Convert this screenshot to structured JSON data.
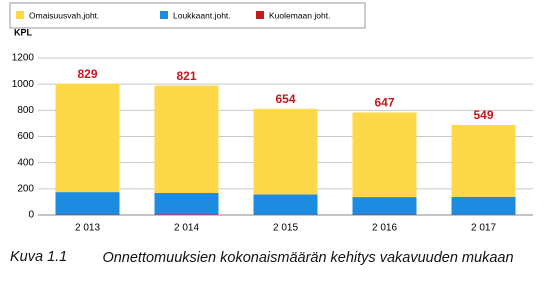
{
  "chart_data": {
    "type": "stacked_bar",
    "y_label": "KPL",
    "categories": [
      "2 013",
      "2 014",
      "2 015",
      "2 016",
      "2 017"
    ],
    "series": [
      {
        "name": "Omaisuusvah.joht.",
        "color": "#fdd94a",
        "values": [
          829,
          821,
          654,
          647,
          549
        ]
      },
      {
        "name": "Loukkaant.joht.",
        "color": "#1d8be0",
        "values": [
          172,
          163,
          155,
          134,
          137
        ]
      },
      {
        "name": "Kuolemaan joht.",
        "color": "#c8161d",
        "values": [
          3,
          5,
          2,
          3,
          2
        ]
      }
    ],
    "stack_order": [
      2,
      1,
      0
    ],
    "label_color": "#c8161d",
    "ylim": [
      0,
      1200
    ],
    "yticks": [
      0,
      200,
      400,
      600,
      800,
      1000,
      1200
    ],
    "grid": true,
    "legend": "top"
  },
  "caption": {
    "label": "Kuva 1.1",
    "text": "Onnettomuuksien kokonaismäärän kehitys vakavuuden mukaan"
  }
}
